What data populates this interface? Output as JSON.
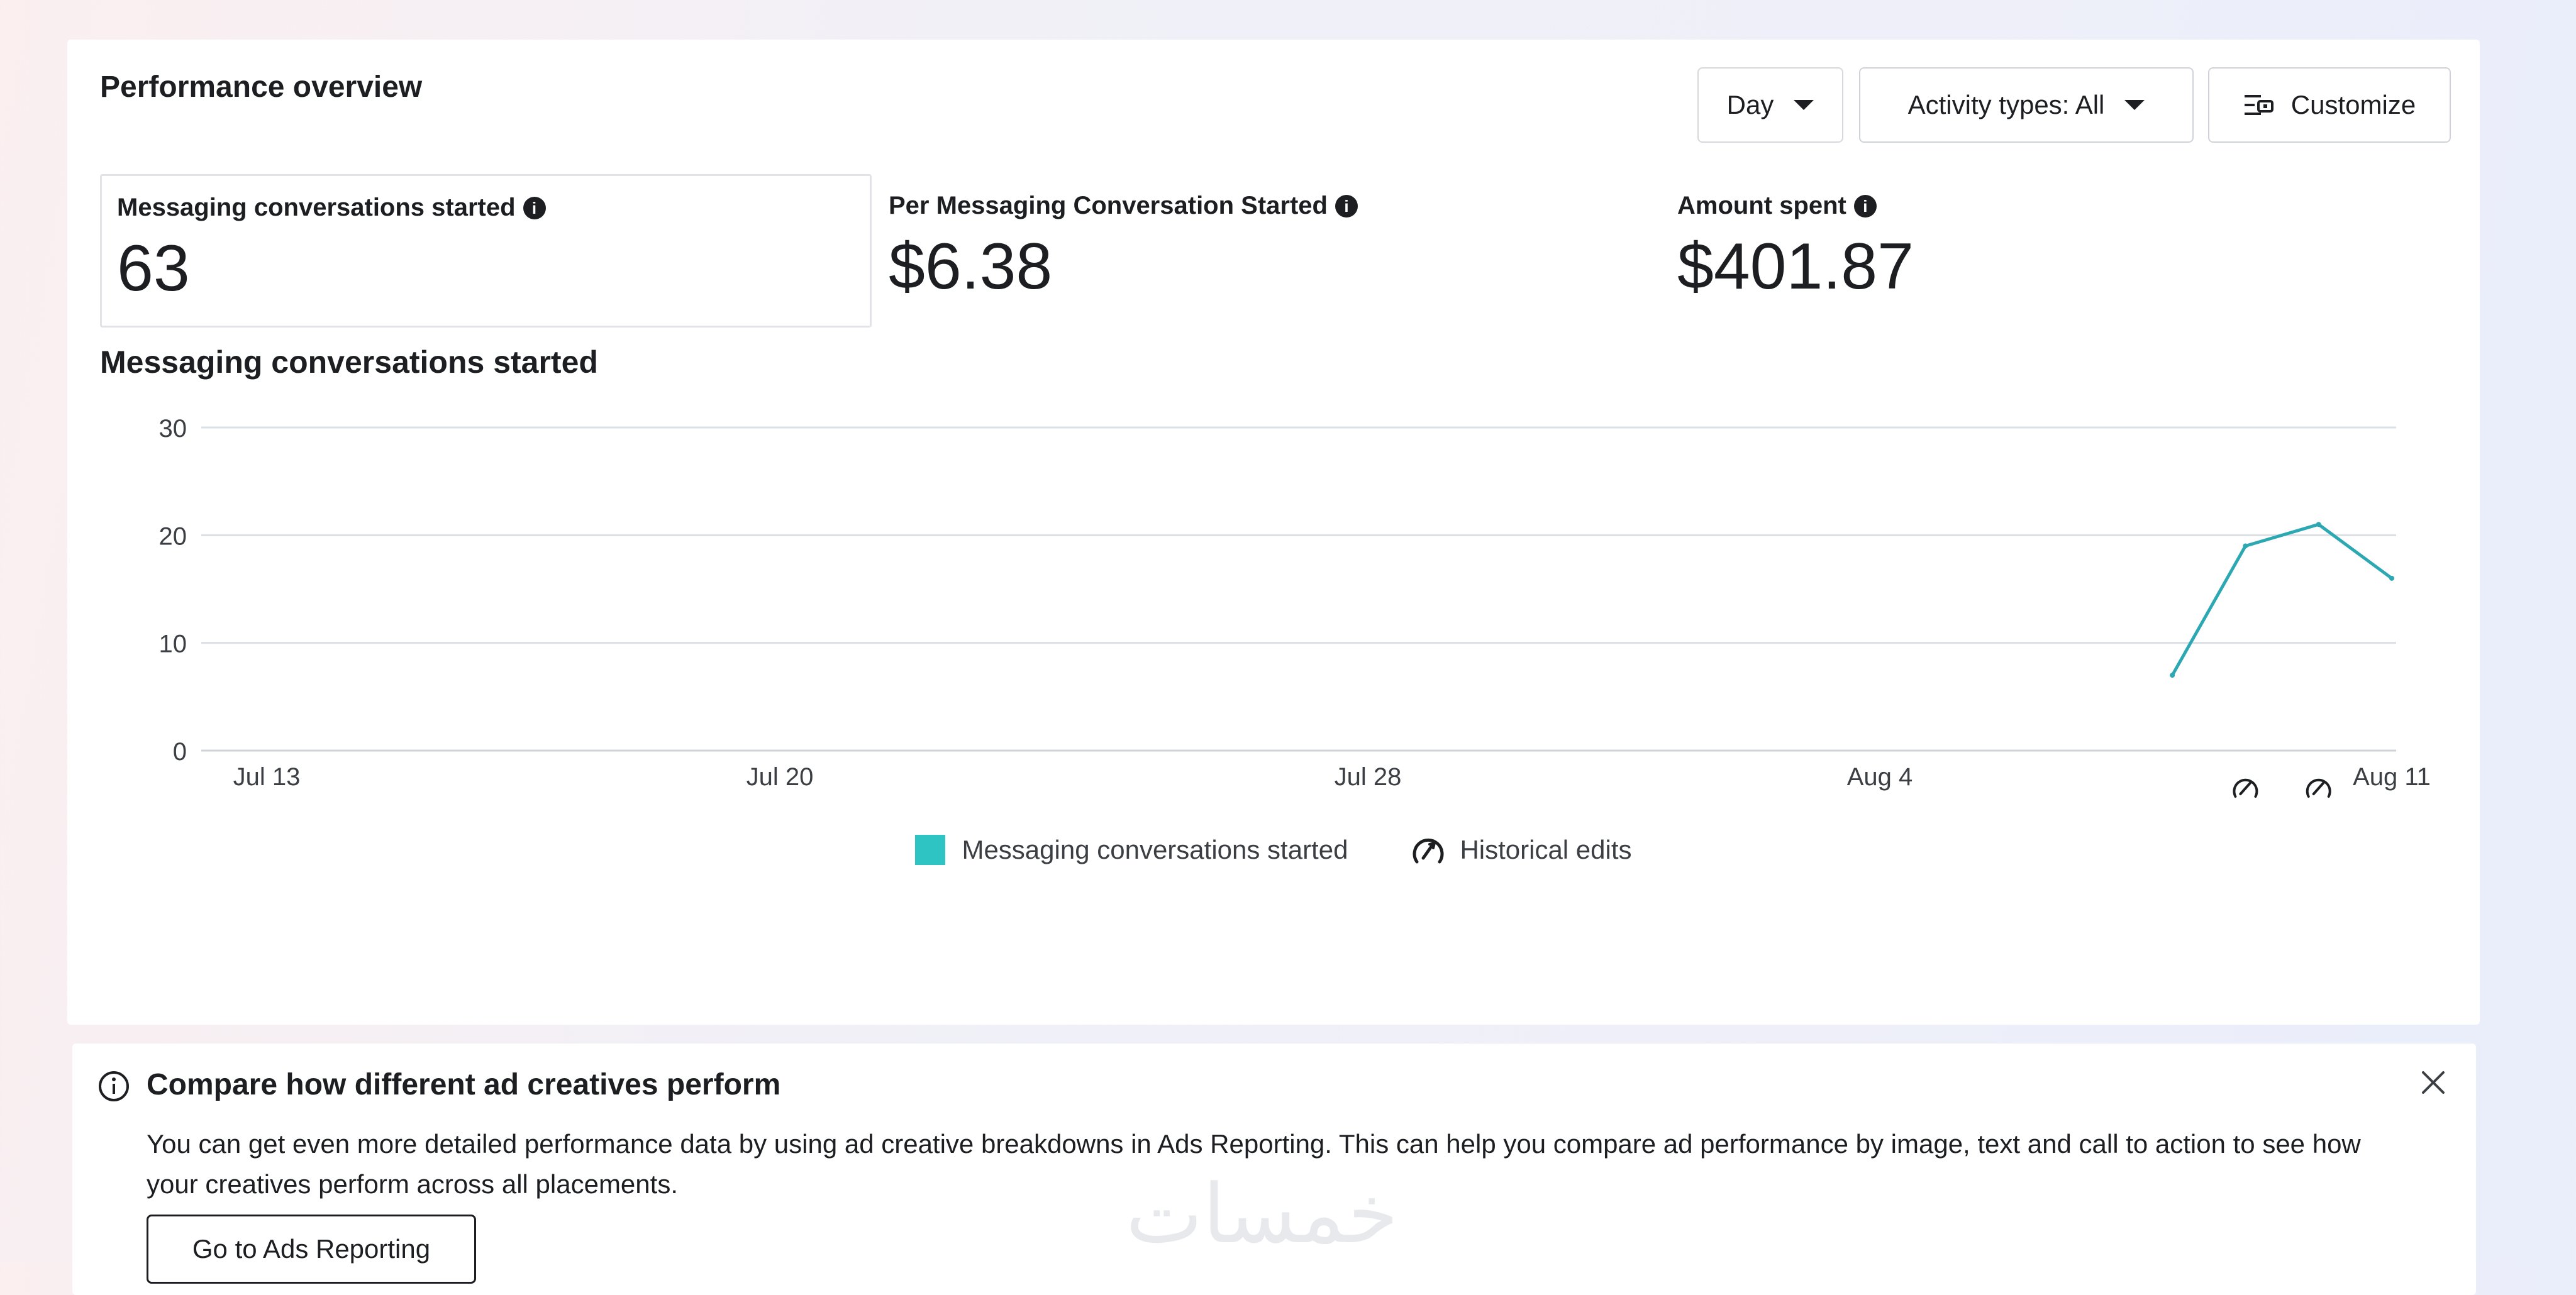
{
  "header": {
    "title": "Performance overview",
    "day_label": "Day",
    "activity_label": "Activity types: All",
    "customize_label": "Customize"
  },
  "metrics": [
    {
      "label": "Messaging conversations started",
      "value": "63",
      "selected": true
    },
    {
      "label": "Per Messaging Conversation Started",
      "value": "$6.38",
      "selected": false
    },
    {
      "label": "Amount spent",
      "value": "$401.87",
      "selected": false
    }
  ],
  "chart_title": "Messaging conversations started",
  "chart_data": {
    "type": "line",
    "title": "Messaging conversations started",
    "xlabel": "",
    "ylabel": "",
    "ylim": [
      0,
      30
    ],
    "y_ticks": [
      "30",
      "20",
      "10",
      "0"
    ],
    "x_ticks": [
      "Jul 13",
      "Jul 20",
      "Jul 28",
      "Aug 4",
      "Aug 11"
    ],
    "grid": true,
    "legend_placement": "bottom-center",
    "series": [
      {
        "name": "Messaging conversations started",
        "color": "#2ba8b2",
        "x": [
          "Aug 8",
          "Aug 9",
          "Aug 10",
          "Aug 11"
        ],
        "y": [
          7,
          19,
          21,
          16
        ]
      }
    ],
    "historical_edits": [
      "Aug 9",
      "Aug 10"
    ]
  },
  "legend": {
    "series_label": "Messaging conversations started",
    "series_color": "#2ec4c4",
    "edits_label": "Historical edits",
    "edits_icon": "historical-edits-icon"
  },
  "banner": {
    "title": "Compare how different ad creatives perform",
    "body": "You can get even more detailed performance data by using ad creative breakdowns in Ads Reporting. This can help you compare ad performance by image, text and call to action to see how your creatives perform across all placements.",
    "button_label": "Go to Ads Reporting"
  },
  "watermark": "خمسات"
}
